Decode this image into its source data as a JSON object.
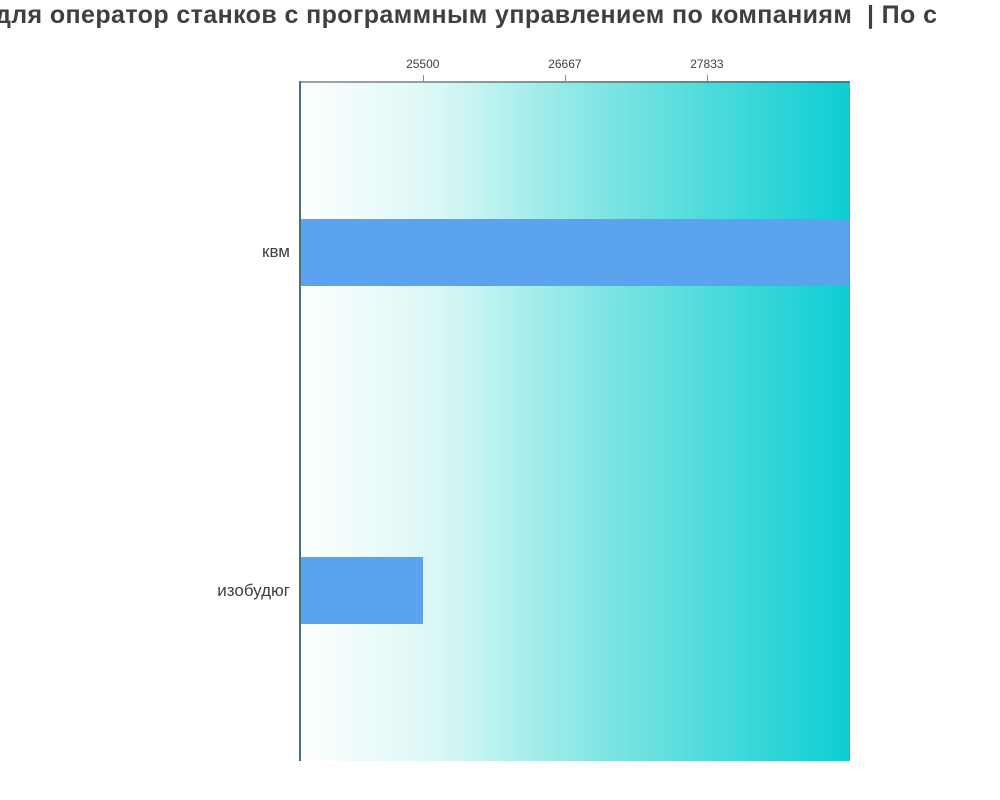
{
  "title": "для оператор станков с программным управлением по компаниям  | По с",
  "title_note": "truncated at both left and right edges of the viewport",
  "colors": {
    "bar": "#5ba3ef",
    "plot_gradient_start": "#feffff",
    "plot_gradient_end": "#0cced3",
    "text": "#3f3f3f",
    "spine": "#555555"
  },
  "chart_data": {
    "type": "bar",
    "orientation": "horizontal",
    "title": "для оператор станков с программным управлением по компаниям  | По с",
    "categories": [
      "квм",
      "изобудюг"
    ],
    "values": [
      29000,
      25500
    ],
    "x_ticks": [
      25500,
      26667,
      27833
    ],
    "x_tick_labels": [
      "25500",
      "26667",
      "27833"
    ],
    "xlim": [
      24500,
      29000
    ],
    "xlabel": "",
    "ylabel": "",
    "grid": false,
    "legend": false,
    "axis_position": "top",
    "plot_background": "horizontal gradient white to teal",
    "bar_fraction_of_band": 0.2
  }
}
